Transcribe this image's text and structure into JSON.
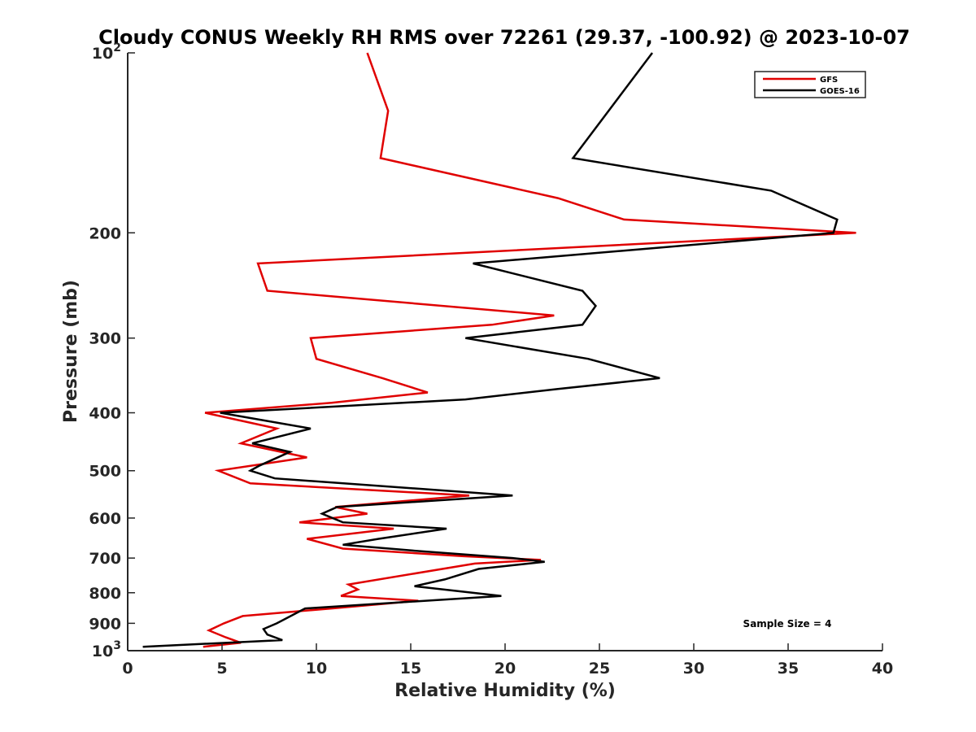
{
  "chart_data": {
    "type": "line",
    "title": "Cloudy CONUS Weekly RH RMS over 72261 (29.37, -100.92) @ 2023-10-07",
    "xlabel": "Relative Humidity (%)",
    "ylabel": "Pressure (mb)",
    "xlim": [
      0,
      40
    ],
    "ylim": [
      1000,
      100
    ],
    "y_scale": "log",
    "y_reversed": true,
    "grid": false,
    "legend_position": "top-right",
    "x_ticks": [
      0,
      5,
      10,
      15,
      20,
      25,
      30,
      35,
      40
    ],
    "y_ticks": [
      {
        "value": 100,
        "label": "10",
        "sup": "2"
      },
      {
        "value": 200,
        "label": "200",
        "sup": ""
      },
      {
        "value": 300,
        "label": "300",
        "sup": ""
      },
      {
        "value": 400,
        "label": "400",
        "sup": ""
      },
      {
        "value": 500,
        "label": "500",
        "sup": ""
      },
      {
        "value": 600,
        "label": "600",
        "sup": ""
      },
      {
        "value": 700,
        "label": "700",
        "sup": ""
      },
      {
        "value": 800,
        "label": "800",
        "sup": ""
      },
      {
        "value": 900,
        "label": "900",
        "sup": ""
      },
      {
        "value": 1000,
        "label": "10",
        "sup": "3"
      }
    ],
    "annotation": "Sample Size = 4",
    "series": [
      {
        "name": "GFS",
        "color": "#e00000",
        "points": [
          [
            12.7,
            100
          ],
          [
            13.8,
            125
          ],
          [
            13.4,
            150
          ],
          [
            22.8,
            175
          ],
          [
            26.3,
            190
          ],
          [
            38.6,
            200
          ],
          [
            6.9,
            225
          ],
          [
            7.4,
            250
          ],
          [
            22.6,
            275
          ],
          [
            19.3,
            285
          ],
          [
            9.7,
            300
          ],
          [
            10.0,
            325
          ],
          [
            13.5,
            350
          ],
          [
            15.9,
            370
          ],
          [
            10.8,
            385
          ],
          [
            4.1,
            400
          ],
          [
            7.9,
            425
          ],
          [
            6.0,
            450
          ],
          [
            9.5,
            475
          ],
          [
            4.8,
            500
          ],
          [
            6.5,
            525
          ],
          [
            18.1,
            550
          ],
          [
            11.0,
            575
          ],
          [
            12.7,
            590
          ],
          [
            9.1,
            610
          ],
          [
            14.1,
            625
          ],
          [
            9.5,
            650
          ],
          [
            11.4,
            675
          ],
          [
            17.8,
            695
          ],
          [
            21.9,
            705
          ],
          [
            18.4,
            715
          ],
          [
            11.7,
            775
          ],
          [
            12.2,
            790
          ],
          [
            11.3,
            810
          ],
          [
            15.4,
            825
          ],
          [
            10.8,
            850
          ],
          [
            6.1,
            875
          ],
          [
            5.1,
            900
          ],
          [
            4.3,
            925
          ],
          [
            5.2,
            950
          ],
          [
            6.0,
            970
          ],
          [
            4.0,
            985
          ]
        ]
      },
      {
        "name": "GOES-16",
        "color": "#000000",
        "points": [
          [
            27.8,
            100
          ],
          [
            23.6,
            150
          ],
          [
            34.1,
            170
          ],
          [
            37.6,
            190
          ],
          [
            37.4,
            200
          ],
          [
            18.3,
            225
          ],
          [
            24.1,
            250
          ],
          [
            24.8,
            265
          ],
          [
            24.1,
            285
          ],
          [
            17.9,
            300
          ],
          [
            24.4,
            325
          ],
          [
            28.2,
            350
          ],
          [
            22.8,
            365
          ],
          [
            17.9,
            380
          ],
          [
            4.9,
            400
          ],
          [
            9.7,
            425
          ],
          [
            6.6,
            450
          ],
          [
            8.6,
            465
          ],
          [
            7.0,
            490
          ],
          [
            6.5,
            500
          ],
          [
            7.8,
            515
          ],
          [
            20.4,
            550
          ],
          [
            11.1,
            575
          ],
          [
            10.3,
            590
          ],
          [
            11.4,
            610
          ],
          [
            16.9,
            625
          ],
          [
            13.3,
            650
          ],
          [
            11.4,
            665
          ],
          [
            15.1,
            680
          ],
          [
            20.4,
            700
          ],
          [
            22.1,
            710
          ],
          [
            18.6,
            730
          ],
          [
            16.8,
            760
          ],
          [
            15.2,
            780
          ],
          [
            19.8,
            810
          ],
          [
            9.4,
            850
          ],
          [
            7.9,
            900
          ],
          [
            7.2,
            920
          ],
          [
            7.4,
            940
          ],
          [
            8.2,
            960
          ],
          [
            0.8,
            985
          ]
        ]
      }
    ]
  }
}
